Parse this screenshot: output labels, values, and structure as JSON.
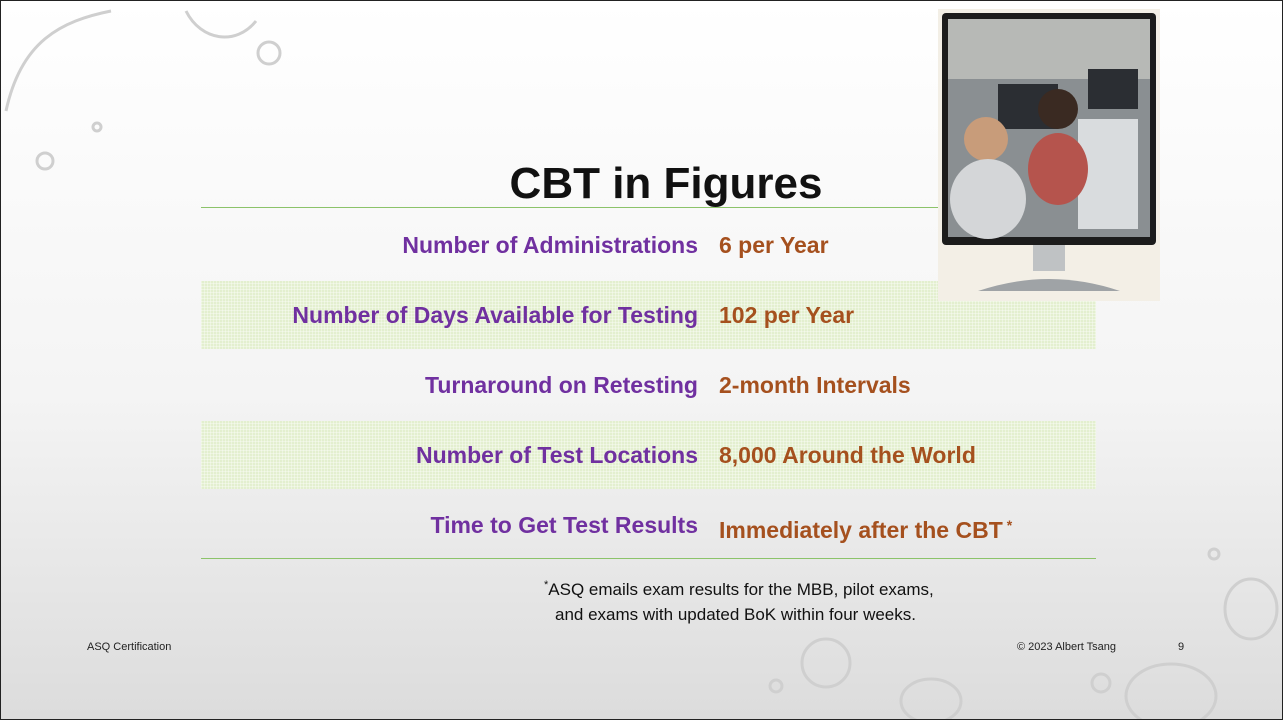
{
  "title": "CBT in Figures",
  "rows": [
    {
      "label": "Number of Administrations",
      "value": "6 per Year"
    },
    {
      "label": "Number of Days Available for Testing",
      "value": "102 per Year"
    },
    {
      "label": "Turnaround on Retesting",
      "value": "2-month Intervals"
    },
    {
      "label": "Number of Test Locations",
      "value": "8,000 Around the World"
    },
    {
      "label": "Time to Get Test Results",
      "value": "Immediately after the CBT",
      "marker": "*"
    }
  ],
  "footnote": {
    "marker": "*",
    "lines": [
      "ASQ emails exam results for the MBB, pilot exams,",
      "and exams with updated BoK within four weeks."
    ]
  },
  "footer": {
    "left": "ASQ Certification",
    "right": "© 2023 Albert Tsang",
    "page": "9"
  }
}
